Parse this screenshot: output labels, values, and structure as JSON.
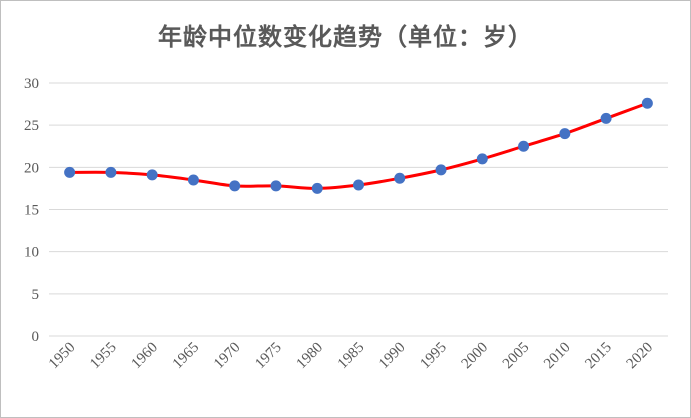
{
  "chart_data": {
    "type": "line",
    "title": "年龄中位数变化趋势（单位：岁）",
    "x": [
      "1950",
      "1955",
      "1960",
      "1965",
      "1970",
      "1975",
      "1980",
      "1985",
      "1990",
      "1995",
      "2000",
      "2005",
      "2010",
      "2015",
      "2020"
    ],
    "series": [
      {
        "values": [
          19.4,
          19.4,
          19.1,
          18.5,
          17.8,
          17.8,
          17.5,
          17.9,
          18.7,
          19.7,
          21.0,
          22.5,
          24.0,
          25.8,
          27.6
        ]
      }
    ],
    "ylim": [
      0,
      30
    ],
    "yticks": [
      0,
      5,
      10,
      15,
      20,
      25,
      30
    ],
    "grid": true,
    "line_color": "#ff0000",
    "marker_color": "#4472c4",
    "grid_color": "#d9d9d9"
  }
}
